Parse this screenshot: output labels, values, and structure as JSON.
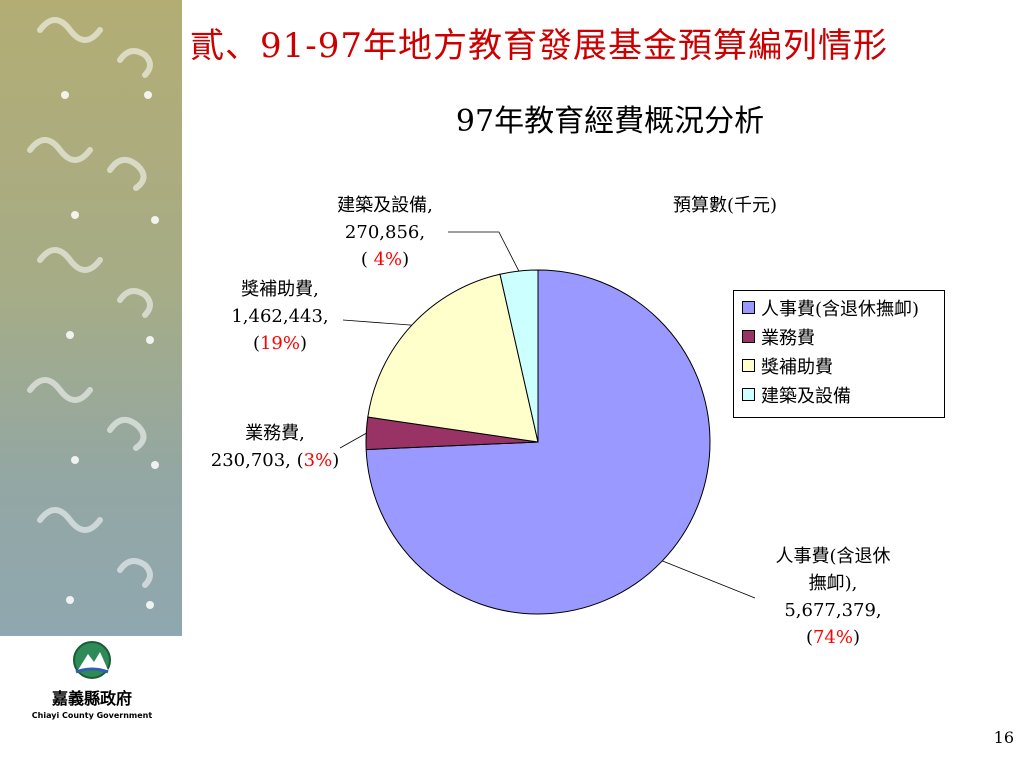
{
  "slide": {
    "title": "貳、91-97年地方教育發展基金預算編列情形",
    "page_number": "16"
  },
  "logo": {
    "name": "嘉義縣政府",
    "english": "Chiayi County Government"
  },
  "chart_data": {
    "type": "pie",
    "title": "97年教育經費概況分析",
    "subtitle": "預算數(千元)",
    "legend_position": "right",
    "slices": [
      {
        "label": "人事費(含退休撫卹)",
        "value": 5677379,
        "value_text": "5,677,379,",
        "percent": 74,
        "percent_text": "74%",
        "color": "#9999ff",
        "label_lines": [
          "人事費(含退休",
          "撫卹),"
        ],
        "pct_prefix": "(",
        "pct_suffix": ")"
      },
      {
        "label": "業務費",
        "value": 230703,
        "value_text": "230,703,",
        "percent": 3,
        "percent_text": "3%",
        "color": "#993366",
        "label_lines": [
          "業務費,"
        ],
        "pct_prefix": " (",
        "pct_suffix": ")"
      },
      {
        "label": "獎補助費",
        "value": 1462443,
        "value_text": "1,462,443,",
        "percent": 19,
        "percent_text": "19%",
        "color": "#ffffcc",
        "label_lines": [
          "獎補助費,"
        ],
        "pct_prefix": "(",
        "pct_suffix": ")"
      },
      {
        "label": "建築及設備",
        "value": 270856,
        "value_text": "270,856,",
        "percent": 4,
        "percent_text": " 4%",
        "color": "#ccffff",
        "label_lines": [
          "建築及設備,"
        ],
        "pct_prefix": "(",
        "pct_suffix": ")"
      }
    ]
  }
}
